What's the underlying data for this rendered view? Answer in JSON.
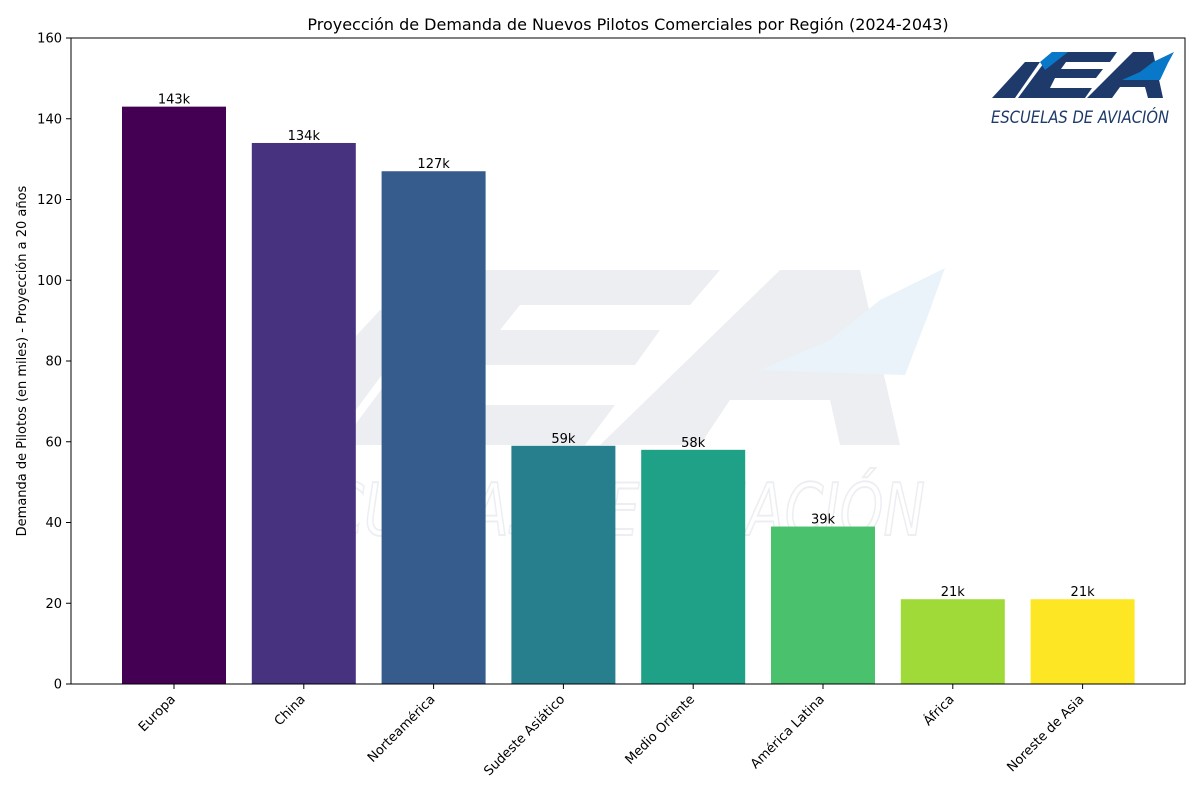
{
  "chart_data": {
    "type": "bar",
    "title": "Proyección de Demanda de Nuevos Pilotos Comerciales por Región (2024-2043)",
    "xlabel": "",
    "ylabel": "Demanda de Pilotos (en miles) - Proyección a 20 años",
    "ylim": [
      0,
      160
    ],
    "yticks": [
      0,
      20,
      40,
      60,
      80,
      100,
      120,
      140,
      160
    ],
    "grid": false,
    "categories": [
      "Europa",
      "China",
      "Norteamérica",
      "Sudeste Asiático",
      "Medio Oriente",
      "América Latina",
      "África",
      "Noreste de Asia"
    ],
    "values": [
      143,
      134,
      127,
      59,
      58,
      39,
      21,
      21
    ],
    "data_labels": [
      "143k",
      "134k",
      "127k",
      "59k",
      "58k",
      "39k",
      "21k",
      "21k"
    ],
    "colors": [
      "#440154",
      "#46327e",
      "#365c8d",
      "#277f8e",
      "#1fa187",
      "#4ac16d",
      "#a0da39",
      "#fde725"
    ]
  },
  "logo": {
    "text": "ESCUELAS DE AVIACIÓN",
    "colors": {
      "dark": "#1d3a6b",
      "blue": "#0a78c8"
    }
  },
  "watermark": {
    "text": "ESCUELAS DE AVIACIÓN"
  }
}
